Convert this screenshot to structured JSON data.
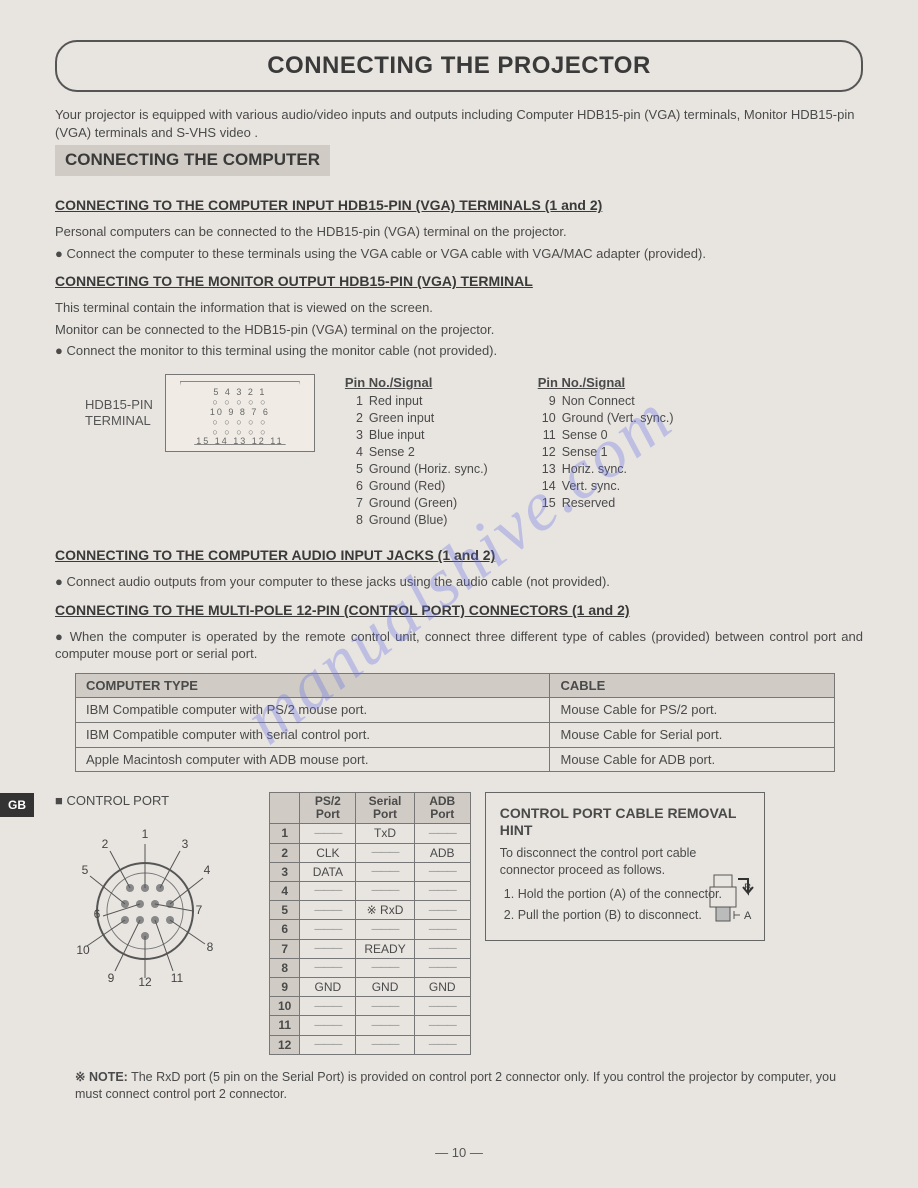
{
  "page_title": "CONNECTING THE PROJECTOR",
  "intro": "Your projector is equipped with various audio/video inputs and outputs including Computer HDB15-pin (VGA) terminals, Monitor HDB15-pin (VGA) terminals and S-VHS video .",
  "section_bar": "CONNECTING THE COMPUTER",
  "sub1": "CONNECTING TO THE COMPUTER INPUT HDB15-PIN (VGA) TERMINALS (1 and 2)",
  "sub1_p1": "Personal computers can be connected to the HDB15-pin (VGA) terminal on the projector.",
  "sub1_p2": "● Connect the computer to these terminals using the VGA cable or VGA cable with VGA/MAC adapter (provided).",
  "sub2": "CONNECTING TO THE MONITOR OUTPUT HDB15-PIN (VGA) TERMINAL",
  "sub2_p1": "This terminal contain the information that is viewed on the screen.",
  "sub2_p2": "Monitor can be connected to the HDB15-pin (VGA) terminal on the projector.",
  "sub2_p3": "● Connect the monitor to this terminal using the monitor cable (not provided).",
  "pin_label_1": "HDB15-PIN",
  "pin_label_2": "TERMINAL",
  "pin_head": "Pin No./Signal",
  "pins_left": [
    {
      "n": "1",
      "s": "Red input"
    },
    {
      "n": "2",
      "s": "Green input"
    },
    {
      "n": "3",
      "s": "Blue input"
    },
    {
      "n": "4",
      "s": "Sense 2"
    },
    {
      "n": "5",
      "s": "Ground (Horiz. sync.)"
    },
    {
      "n": "6",
      "s": "Ground (Red)"
    },
    {
      "n": "7",
      "s": "Ground (Green)"
    },
    {
      "n": "8",
      "s": "Ground (Blue)"
    }
  ],
  "pins_right": [
    {
      "n": "9",
      "s": "Non Connect"
    },
    {
      "n": "10",
      "s": "Ground (Vert. sync.)"
    },
    {
      "n": "11",
      "s": "Sense 0"
    },
    {
      "n": "12",
      "s": "Sense 1"
    },
    {
      "n": "13",
      "s": "Horiz. sync."
    },
    {
      "n": "14",
      "s": "Vert. sync."
    },
    {
      "n": "15",
      "s": "Reserved"
    }
  ],
  "sub3": "CONNECTING TO THE COMPUTER AUDIO INPUT JACKS (1 and 2)",
  "sub3_p1": "● Connect audio outputs from your computer to these jacks using the audio cable (not provided).",
  "sub4": "CONNECTING TO THE MULTI-POLE 12-PIN (CONTROL PORT) CONNECTORS (1 and 2)",
  "sub4_p1": "● When the computer is operated by the remote control unit, connect three different type of cables (provided) between control port and computer mouse port or serial port.",
  "cable_th1": "COMPUTER TYPE",
  "cable_th2": "CABLE",
  "cable_rows": [
    {
      "a": "IBM Compatible computer with PS/2 mouse port.",
      "b": "Mouse Cable for PS/2 port."
    },
    {
      "a": "IBM Compatible computer with serial control port.",
      "b": "Mouse Cable for Serial port."
    },
    {
      "a": "Apple Macintosh computer with ADB mouse port.",
      "b": "Mouse Cable for ADB port."
    }
  ],
  "ctrl_caption": "CONTROL PORT",
  "port_th": [
    "",
    "PS/2 Port",
    "Serial Port",
    "ADB Port"
  ],
  "port_rows": [
    [
      "1",
      "—",
      "TxD",
      "—"
    ],
    [
      "2",
      "CLK",
      "—",
      "ADB"
    ],
    [
      "3",
      "DATA",
      "—",
      "—"
    ],
    [
      "4",
      "—",
      "—",
      "—"
    ],
    [
      "5",
      "—",
      "※ RxD",
      "—"
    ],
    [
      "6",
      "—",
      "—",
      "—"
    ],
    [
      "7",
      "—",
      "READY",
      "—"
    ],
    [
      "8",
      "—",
      "—",
      "—"
    ],
    [
      "9",
      "GND",
      "GND",
      "GND"
    ],
    [
      "10",
      "—",
      "—",
      "—"
    ],
    [
      "11",
      "—",
      "—",
      "—"
    ],
    [
      "12",
      "—",
      "—",
      "—"
    ]
  ],
  "hint_title": "CONTROL PORT CABLE REMOVAL HINT",
  "hint_p": "To disconnect the control port cable connector proceed as follows.",
  "hint_li1": "Hold the portion (A) of the connector.",
  "hint_li2": "Pull  the portion (B) to disconnect.",
  "note_label": "※ NOTE:",
  "note_text": " The RxD port (5 pin on the Serial Port) is provided on control port 2 connector only. If you control the projector by computer, you must connect control port 2 connector.",
  "page_number": "— 10 —",
  "gb": "GB",
  "watermark": "manualshive.com",
  "colors": {
    "page_bg": "#e8e5e0",
    "bar_bg": "#d0ccc5",
    "border": "#777777",
    "text": "#4a4a4a",
    "watermark": "rgba(100,110,230,0.32)"
  }
}
